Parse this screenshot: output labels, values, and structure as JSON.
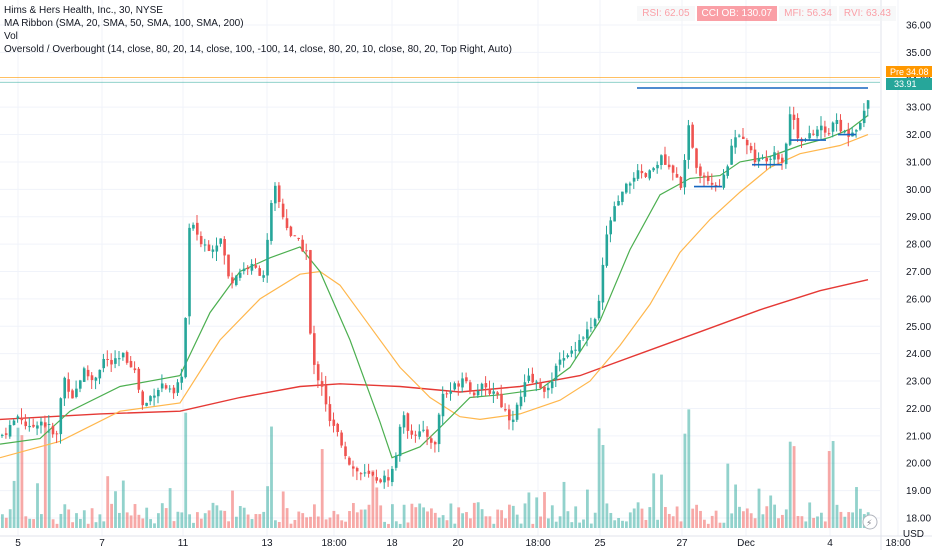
{
  "legend": {
    "line1": "Hims & Hers Health, Inc., 30, NYSE",
    "line2": "MA Ribbon (SMA, 20, SMA, 50, SMA, 100, SMA, 200)",
    "line3": "Vol",
    "line4": "Oversold / Overbought (14, close, 80, 20, 14, close, 100, -100, 14, close, 80, 20, 10, close, 80, 20, Top Right, Auto)"
  },
  "oscillators": {
    "rsi": "RSI: 62.05",
    "cci": "CCI OB: 130.07",
    "mfi": "MFI: 56.34",
    "rvi": "RVI: 63.43"
  },
  "price_tags": {
    "pre_label": "Pre",
    "pre_value": "34.08",
    "last_value": "33.91"
  },
  "currency": "USD",
  "colors": {
    "up": "#26a69a",
    "down": "#ef5350",
    "sma20": "#4caf50",
    "sma50": "#ffb74d",
    "sma200": "#e53935",
    "trendline": "#1565c0",
    "pre_tag": "#ff9800",
    "last_tag": "#26a69a"
  },
  "chart_data": {
    "type": "candlestick",
    "title": "Hims & Hers Health, Inc., 30, NYSE",
    "ylim": [
      17.8,
      36.3
    ],
    "y_ticks": [
      18.0,
      19.0,
      20.0,
      21.0,
      22.0,
      23.0,
      24.0,
      25.0,
      26.0,
      27.0,
      28.0,
      29.0,
      30.0,
      31.0,
      32.0,
      33.0,
      34.0,
      35.0,
      36.0
    ],
    "x_ticks": [
      "5",
      "7",
      "11",
      "13",
      "18:00",
      "18",
      "20",
      "18:00",
      "25",
      "27",
      "Dec",
      "4",
      "18:00"
    ],
    "close_path": [
      [
        0,
        21.0
      ],
      [
        8,
        21.3
      ],
      [
        18,
        21.8
      ],
      [
        28,
        21.2
      ],
      [
        38,
        21.6
      ],
      [
        48,
        21.3
      ],
      [
        55,
        20.8
      ],
      [
        62,
        23.2
      ],
      [
        72,
        22.4
      ],
      [
        82,
        23.4
      ],
      [
        92,
        23.0
      ],
      [
        102,
        23.8
      ],
      [
        112,
        23.6
      ],
      [
        122,
        23.9
      ],
      [
        132,
        23.6
      ],
      [
        142,
        22.0
      ],
      [
        152,
        22.6
      ],
      [
        162,
        22.9
      ],
      [
        172,
        22.4
      ],
      [
        180,
        23.1
      ],
      [
        184,
        25.0
      ],
      [
        188,
        28.5
      ],
      [
        194,
        28.6
      ],
      [
        200,
        28.0
      ],
      [
        210,
        27.9
      ],
      [
        220,
        28.2
      ],
      [
        228,
        26.6
      ],
      [
        238,
        27.0
      ],
      [
        248,
        27.2
      ],
      [
        258,
        27.0
      ],
      [
        264,
        26.9
      ],
      [
        268,
        29.0
      ],
      [
        274,
        30.0
      ],
      [
        282,
        29.0
      ],
      [
        290,
        28.3
      ],
      [
        298,
        28.0
      ],
      [
        306,
        27.7
      ],
      [
        310,
        23.8
      ],
      [
        316,
        23.2
      ],
      [
        322,
        22.8
      ],
      [
        328,
        21.5
      ],
      [
        334,
        21.2
      ],
      [
        340,
        20.8
      ],
      [
        346,
        20.2
      ],
      [
        352,
        19.8
      ],
      [
        360,
        19.6
      ],
      [
        370,
        19.5
      ],
      [
        380,
        19.4
      ],
      [
        388,
        19.5
      ],
      [
        394,
        20.0
      ],
      [
        400,
        21.8
      ],
      [
        408,
        21.2
      ],
      [
        418,
        21.1
      ],
      [
        428,
        21.0
      ],
      [
        434,
        20.6
      ],
      [
        440,
        22.5
      ],
      [
        448,
        22.6
      ],
      [
        456,
        22.9
      ],
      [
        464,
        23.3
      ],
      [
        470,
        22.5
      ],
      [
        478,
        22.8
      ],
      [
        486,
        22.6
      ],
      [
        494,
        22.7
      ],
      [
        502,
        22.0
      ],
      [
        510,
        21.6
      ],
      [
        518,
        22.2
      ],
      [
        526,
        23.1
      ],
      [
        534,
        22.9
      ],
      [
        542,
        22.8
      ],
      [
        550,
        22.6
      ],
      [
        556,
        24.0
      ],
      [
        564,
        23.7
      ],
      [
        572,
        24.2
      ],
      [
        580,
        24.6
      ],
      [
        588,
        24.9
      ],
      [
        596,
        25.2
      ],
      [
        600,
        26.6
      ],
      [
        604,
        28.0
      ],
      [
        610,
        29.0
      ],
      [
        618,
        29.6
      ],
      [
        626,
        30.1
      ],
      [
        634,
        30.6
      ],
      [
        642,
        30.4
      ],
      [
        650,
        30.6
      ],
      [
        658,
        31.2
      ],
      [
        666,
        30.8
      ],
      [
        674,
        30.4
      ],
      [
        680,
        30.2
      ],
      [
        684,
        31.0
      ],
      [
        688,
        32.4
      ],
      [
        694,
        31.0
      ],
      [
        700,
        30.6
      ],
      [
        708,
        30.4
      ],
      [
        716,
        30.2
      ],
      [
        722,
        30.3
      ],
      [
        728,
        31.2
      ],
      [
        734,
        32.0
      ],
      [
        740,
        32.2
      ],
      [
        746,
        31.6
      ],
      [
        752,
        31.2
      ],
      [
        758,
        31.0
      ],
      [
        766,
        31.2
      ],
      [
        774,
        31.4
      ],
      [
        782,
        31.0
      ],
      [
        790,
        33.0
      ],
      [
        796,
        32.0
      ],
      [
        804,
        31.8
      ],
      [
        812,
        32.0
      ],
      [
        820,
        32.3
      ],
      [
        826,
        31.8
      ],
      [
        832,
        32.6
      ],
      [
        838,
        32.2
      ],
      [
        846,
        32.0
      ],
      [
        854,
        32.3
      ],
      [
        860,
        32.4
      ],
      [
        866,
        33.3
      ],
      [
        870,
        33.9
      ]
    ],
    "sma20": [
      [
        0,
        20.7
      ],
      [
        40,
        20.9
      ],
      [
        70,
        21.9
      ],
      [
        120,
        22.8
      ],
      [
        180,
        23.2
      ],
      [
        210,
        25.5
      ],
      [
        240,
        27.0
      ],
      [
        270,
        27.5
      ],
      [
        300,
        27.9
      ],
      [
        320,
        27.0
      ],
      [
        350,
        24.5
      ],
      [
        380,
        21.5
      ],
      [
        392,
        20.2
      ],
      [
        420,
        20.6
      ],
      [
        440,
        21.3
      ],
      [
        470,
        22.4
      ],
      [
        500,
        22.5
      ],
      [
        540,
        22.7
      ],
      [
        570,
        23.5
      ],
      [
        600,
        25.2
      ],
      [
        630,
        27.8
      ],
      [
        660,
        29.8
      ],
      [
        690,
        30.4
      ],
      [
        720,
        30.5
      ],
      [
        740,
        31.0
      ],
      [
        770,
        31.2
      ],
      [
        800,
        31.6
      ],
      [
        830,
        31.9
      ],
      [
        850,
        32.2
      ],
      [
        868,
        32.7
      ]
    ],
    "sma50": [
      [
        0,
        20.2
      ],
      [
        60,
        20.8
      ],
      [
        120,
        21.9
      ],
      [
        180,
        22.2
      ],
      [
        220,
        24.5
      ],
      [
        260,
        26.0
      ],
      [
        300,
        26.9
      ],
      [
        320,
        27.0
      ],
      [
        340,
        26.5
      ],
      [
        370,
        25.0
      ],
      [
        400,
        23.5
      ],
      [
        430,
        22.4
      ],
      [
        460,
        21.7
      ],
      [
        480,
        21.6
      ],
      [
        520,
        21.8
      ],
      [
        560,
        22.3
      ],
      [
        590,
        23.0
      ],
      [
        620,
        24.3
      ],
      [
        650,
        25.8
      ],
      [
        680,
        27.7
      ],
      [
        710,
        28.9
      ],
      [
        740,
        29.9
      ],
      [
        770,
        30.8
      ],
      [
        800,
        31.3
      ],
      [
        840,
        31.6
      ],
      [
        868,
        32.0
      ]
    ],
    "sma200": [
      [
        0,
        21.6
      ],
      [
        100,
        21.8
      ],
      [
        180,
        21.9
      ],
      [
        240,
        22.4
      ],
      [
        300,
        22.8
      ],
      [
        340,
        22.9
      ],
      [
        400,
        22.8
      ],
      [
        460,
        22.6
      ],
      [
        520,
        22.8
      ],
      [
        580,
        23.2
      ],
      [
        640,
        24.0
      ],
      [
        700,
        24.8
      ],
      [
        760,
        25.6
      ],
      [
        820,
        26.3
      ],
      [
        868,
        26.7
      ]
    ],
    "trendlines": [
      {
        "from": [
          637,
          33.7
        ],
        "to": [
          868,
          33.7
        ]
      },
      {
        "from": [
          694,
          30.1
        ],
        "to": [
          722,
          30.1
        ]
      },
      {
        "from": [
          752,
          30.9
        ],
        "to": [
          782,
          30.9
        ]
      },
      {
        "from": [
          790,
          31.8
        ],
        "to": [
          826,
          31.8
        ]
      },
      {
        "from": [
          838,
          32.0
        ],
        "to": [
          856,
          32.0
        ]
      }
    ],
    "horizontal_lines": [
      {
        "value": 34.08,
        "color": "#ff9800"
      },
      {
        "value": 33.91,
        "color": "#26a69a"
      }
    ],
    "volume_markers": [
      18,
      45,
      185,
      270,
      320,
      600,
      685,
      790,
      830
    ]
  }
}
